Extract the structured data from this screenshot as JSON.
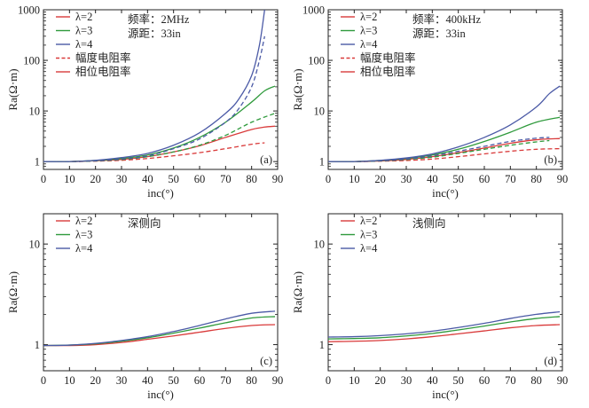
{
  "colors": {
    "red": "#d93a3a",
    "green": "#2f9a3c",
    "blue": "#4b5aa6",
    "axis": "#222222"
  },
  "chart_data": [
    {
      "type": "line",
      "id": "a",
      "panel_label": "(a)",
      "xlabel": "inc(°)",
      "ylabel": "Ra(Ω·m)",
      "yscale": "log",
      "xlim": [
        0,
        90
      ],
      "ylim": [
        0.7,
        1000
      ],
      "xticks": [
        0,
        10,
        20,
        30,
        40,
        50,
        60,
        70,
        80,
        90
      ],
      "xtick_labels": [
        "0",
        "10",
        "20",
        "30",
        "40",
        "50",
        "60",
        "70",
        "80",
        "90"
      ],
      "yticks": [
        1,
        10,
        100,
        1000
      ],
      "ytick_labels": [
        "1",
        "10",
        "100",
        "1000"
      ],
      "annotations": [
        "频率：2MHz",
        "源距：33in"
      ],
      "legend": [
        {
          "label": "λ=2",
          "color": "red",
          "dash": "solid"
        },
        {
          "label": "λ=3",
          "color": "green",
          "dash": "solid"
        },
        {
          "label": "λ=4",
          "color": "blue",
          "dash": "solid"
        },
        {
          "label": "幅度电阻率",
          "color": "red",
          "dash": "dashed"
        },
        {
          "label": "相位电阻率",
          "color": "red",
          "dash": "solid"
        }
      ],
      "series": [
        {
          "name": "λ=2 相位",
          "color": "red",
          "dash": "solid",
          "x": [
            0,
            10,
            20,
            30,
            40,
            50,
            60,
            70,
            80,
            85,
            89
          ],
          "y": [
            1.0,
            1.0,
            1.04,
            1.1,
            1.25,
            1.55,
            2.05,
            3.0,
            4.3,
            4.8,
            5.0
          ]
        },
        {
          "name": "λ=3 相位",
          "color": "green",
          "dash": "solid",
          "x": [
            0,
            10,
            20,
            30,
            40,
            50,
            60,
            70,
            80,
            85,
            89
          ],
          "y": [
            1.0,
            1.0,
            1.05,
            1.15,
            1.35,
            1.85,
            3.0,
            6.0,
            15.0,
            25.0,
            31.0
          ]
        },
        {
          "name": "λ=4 相位",
          "color": "blue",
          "dash": "solid",
          "x": [
            0,
            10,
            20,
            30,
            40,
            50,
            60,
            70,
            75,
            80,
            83,
            85
          ],
          "y": [
            1.0,
            1.0,
            1.06,
            1.2,
            1.45,
            2.1,
            3.7,
            9.0,
            17.0,
            50.0,
            200.0,
            1000.0
          ]
        },
        {
          "name": "λ=2 幅度",
          "color": "red",
          "dash": "dashed",
          "x": [
            0,
            10,
            20,
            30,
            40,
            50,
            60,
            70,
            80,
            85
          ],
          "y": [
            1.0,
            1.0,
            1.02,
            1.06,
            1.15,
            1.3,
            1.5,
            1.8,
            2.2,
            2.35
          ]
        },
        {
          "name": "λ=3 幅度",
          "color": "green",
          "dash": "dashed",
          "x": [
            0,
            10,
            20,
            30,
            40,
            50,
            60,
            70,
            80,
            89
          ],
          "y": [
            1.0,
            1.0,
            1.03,
            1.1,
            1.25,
            1.55,
            2.1,
            3.3,
            6.0,
            9.0
          ]
        },
        {
          "name": "λ=4 幅度",
          "color": "blue",
          "dash": "dashed",
          "x": [
            0,
            10,
            20,
            30,
            40,
            50,
            60,
            70,
            75,
            80,
            83,
            85
          ],
          "y": [
            1.0,
            1.0,
            1.04,
            1.12,
            1.3,
            1.8,
            2.8,
            6.0,
            11.0,
            30.0,
            100.0,
            300.0
          ]
        }
      ]
    },
    {
      "type": "line",
      "id": "b",
      "panel_label": "(b)",
      "xlabel": "inc(°)",
      "ylabel": "Ra(Ω·m)",
      "yscale": "log",
      "xlim": [
        0,
        90
      ],
      "ylim": [
        0.7,
        1000
      ],
      "xticks": [
        0,
        10,
        20,
        30,
        40,
        50,
        60,
        70,
        80,
        90
      ],
      "xtick_labels": [
        "0",
        "10",
        "20",
        "30",
        "40",
        "50",
        "60",
        "70",
        "80",
        "90"
      ],
      "yticks": [
        1,
        10,
        100,
        1000
      ],
      "ytick_labels": [
        "1",
        "10",
        "100",
        "1000"
      ],
      "annotations": [
        "频率：400kHz",
        "源距：33in"
      ],
      "legend": [
        {
          "label": "λ=2",
          "color": "red",
          "dash": "solid"
        },
        {
          "label": "λ=3",
          "color": "green",
          "dash": "solid"
        },
        {
          "label": "λ=4",
          "color": "blue",
          "dash": "solid"
        },
        {
          "label": "幅度电阻率",
          "color": "red",
          "dash": "dashed"
        },
        {
          "label": "相位电阻率",
          "color": "red",
          "dash": "solid"
        }
      ],
      "series": [
        {
          "name": "λ=2 相位",
          "color": "red",
          "dash": "solid",
          "x": [
            0,
            10,
            20,
            30,
            40,
            50,
            60,
            70,
            80,
            89
          ],
          "y": [
            1.0,
            1.0,
            1.03,
            1.1,
            1.25,
            1.5,
            1.85,
            2.3,
            2.7,
            2.85
          ]
        },
        {
          "name": "λ=3 相位",
          "color": "green",
          "dash": "solid",
          "x": [
            0,
            10,
            20,
            30,
            40,
            50,
            60,
            70,
            80,
            89
          ],
          "y": [
            1.0,
            1.0,
            1.05,
            1.15,
            1.35,
            1.75,
            2.5,
            3.8,
            6.0,
            7.5
          ]
        },
        {
          "name": "λ=4 相位",
          "color": "blue",
          "dash": "solid",
          "x": [
            0,
            10,
            20,
            30,
            40,
            50,
            60,
            70,
            80,
            85,
            89
          ],
          "y": [
            1.0,
            1.0,
            1.06,
            1.18,
            1.42,
            1.95,
            3.0,
            5.3,
            12.0,
            22.0,
            31.0
          ]
        },
        {
          "name": "λ=2 幅度",
          "color": "red",
          "dash": "dashed",
          "x": [
            0,
            10,
            20,
            30,
            40,
            50,
            60,
            70,
            80,
            89
          ],
          "y": [
            1.0,
            1.0,
            1.02,
            1.05,
            1.12,
            1.25,
            1.42,
            1.6,
            1.75,
            1.8
          ]
        },
        {
          "name": "λ=3 幅度",
          "color": "green",
          "dash": "dashed",
          "x": [
            0,
            10,
            20,
            30,
            40,
            50,
            60,
            70,
            80,
            85
          ],
          "y": [
            1.0,
            1.0,
            1.03,
            1.1,
            1.22,
            1.45,
            1.75,
            2.1,
            2.45,
            2.6
          ]
        },
        {
          "name": "λ=4 幅度",
          "color": "blue",
          "dash": "dashed",
          "x": [
            0,
            10,
            20,
            30,
            40,
            50,
            60,
            70,
            80,
            85
          ],
          "y": [
            1.0,
            1.0,
            1.04,
            1.12,
            1.3,
            1.6,
            2.0,
            2.5,
            2.9,
            3.0
          ]
        }
      ]
    },
    {
      "type": "line",
      "id": "c",
      "panel_label": "(c)",
      "xlabel": "inc(°)",
      "ylabel": "Ra(Ω·m)",
      "yscale": "log",
      "xlim": [
        0,
        90
      ],
      "ylim": [
        0.55,
        20
      ],
      "xticks": [
        0,
        10,
        20,
        30,
        40,
        50,
        60,
        70,
        80,
        90
      ],
      "xtick_labels": [
        "0",
        "10",
        "20",
        "30",
        "40",
        "50",
        "60",
        "70",
        "80",
        "90"
      ],
      "yticks": [
        1,
        10
      ],
      "ytick_labels": [
        "1",
        "10"
      ],
      "annotations": [
        "深侧向"
      ],
      "legend": [
        {
          "label": "λ=2",
          "color": "red",
          "dash": "solid"
        },
        {
          "label": "λ=3",
          "color": "green",
          "dash": "solid"
        },
        {
          "label": "λ=4",
          "color": "blue",
          "dash": "solid"
        }
      ],
      "series": [
        {
          "name": "λ=2",
          "color": "red",
          "dash": "solid",
          "x": [
            0,
            10,
            20,
            30,
            40,
            50,
            60,
            70,
            80,
            89
          ],
          "y": [
            0.98,
            0.98,
            1.0,
            1.05,
            1.13,
            1.22,
            1.33,
            1.45,
            1.55,
            1.58
          ]
        },
        {
          "name": "λ=3",
          "color": "green",
          "dash": "solid",
          "x": [
            0,
            10,
            20,
            30,
            40,
            50,
            60,
            70,
            80,
            89
          ],
          "y": [
            0.98,
            0.99,
            1.02,
            1.08,
            1.17,
            1.3,
            1.46,
            1.65,
            1.84,
            1.9
          ]
        },
        {
          "name": "λ=4",
          "color": "blue",
          "dash": "solid",
          "x": [
            0,
            10,
            20,
            30,
            40,
            50,
            60,
            70,
            80,
            89
          ],
          "y": [
            0.98,
            0.99,
            1.03,
            1.1,
            1.2,
            1.35,
            1.55,
            1.8,
            2.05,
            2.15
          ]
        }
      ]
    },
    {
      "type": "line",
      "id": "d",
      "panel_label": "(d)",
      "xlabel": "inc(°)",
      "ylabel": "Ra(Ω·m)",
      "yscale": "log",
      "xlim": [
        0,
        90
      ],
      "ylim": [
        0.55,
        20
      ],
      "xticks": [
        0,
        10,
        20,
        30,
        40,
        50,
        60,
        70,
        80,
        90
      ],
      "xtick_labels": [
        "0",
        "10",
        "20",
        "30",
        "40",
        "50",
        "60",
        "70",
        "80",
        "90"
      ],
      "yticks": [
        1,
        10
      ],
      "ytick_labels": [
        "1",
        "10"
      ],
      "annotations": [
        "浅侧向"
      ],
      "legend": [
        {
          "label": "λ=2",
          "color": "red",
          "dash": "solid"
        },
        {
          "label": "λ=3",
          "color": "green",
          "dash": "solid"
        },
        {
          "label": "λ=4",
          "color": "blue",
          "dash": "solid"
        }
      ],
      "series": [
        {
          "name": "λ=2",
          "color": "red",
          "dash": "solid",
          "x": [
            0,
            10,
            20,
            30,
            40,
            50,
            60,
            70,
            80,
            89
          ],
          "y": [
            1.07,
            1.08,
            1.1,
            1.14,
            1.2,
            1.28,
            1.37,
            1.47,
            1.55,
            1.58
          ]
        },
        {
          "name": "λ=3",
          "color": "green",
          "dash": "solid",
          "x": [
            0,
            10,
            20,
            30,
            40,
            50,
            60,
            70,
            80,
            89
          ],
          "y": [
            1.14,
            1.15,
            1.17,
            1.22,
            1.29,
            1.4,
            1.53,
            1.68,
            1.82,
            1.9
          ]
        },
        {
          "name": "λ=4",
          "color": "blue",
          "dash": "solid",
          "x": [
            0,
            10,
            20,
            30,
            40,
            50,
            60,
            70,
            80,
            89
          ],
          "y": [
            1.19,
            1.2,
            1.23,
            1.28,
            1.36,
            1.48,
            1.63,
            1.82,
            2.0,
            2.12
          ]
        }
      ]
    }
  ]
}
